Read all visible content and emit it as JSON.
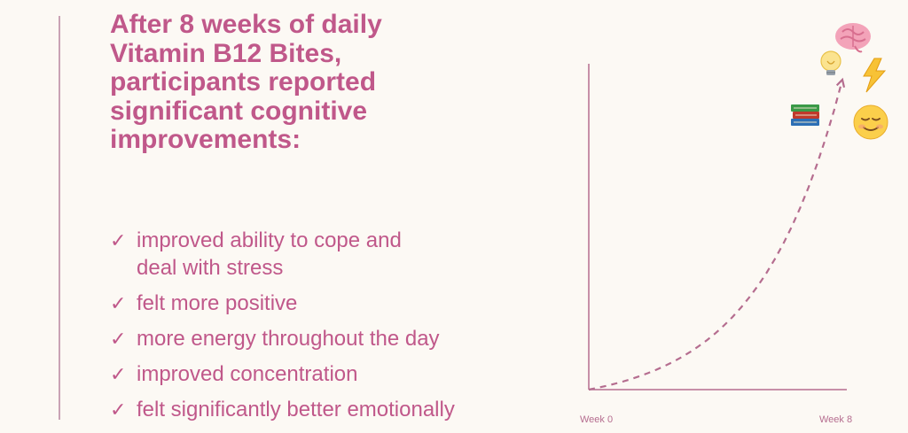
{
  "headline": {
    "lines": [
      "After 8 weeks of daily",
      "Vitamin B12 Bites,",
      "participants reported",
      "significant cognitive",
      " improvements:"
    ]
  },
  "benefits": [
    {
      "line1": "improved ability to cope and",
      "line2": "deal with stress"
    },
    {
      "line1": "felt more positive",
      "line2": ""
    },
    {
      "line1": "more energy throughout the day",
      "line2": ""
    },
    {
      "line1": "improved concentration",
      "line2": ""
    },
    {
      "line1": "felt significantly better emotionally",
      "line2": ""
    }
  ],
  "icons": {
    "check": "✓"
  },
  "colors": {
    "text": "#c0588a",
    "axis": "#b56d8f",
    "divider": "#c9a3b5",
    "background": "#fcf9f4"
  },
  "chart_data": {
    "type": "line",
    "categories": [
      "Week 0",
      "Week 8"
    ],
    "series": [
      {
        "values": [
          0,
          100
        ]
      }
    ],
    "curve": "exponential",
    "line_style": "dashed",
    "arrow": true,
    "ylim": [
      0,
      100
    ],
    "grid": false,
    "endpoint_icons": [
      "books-emoji",
      "light-bulb-emoji",
      "brain-emoji",
      "lightning-emoji",
      "smiling-face-emoji"
    ]
  }
}
